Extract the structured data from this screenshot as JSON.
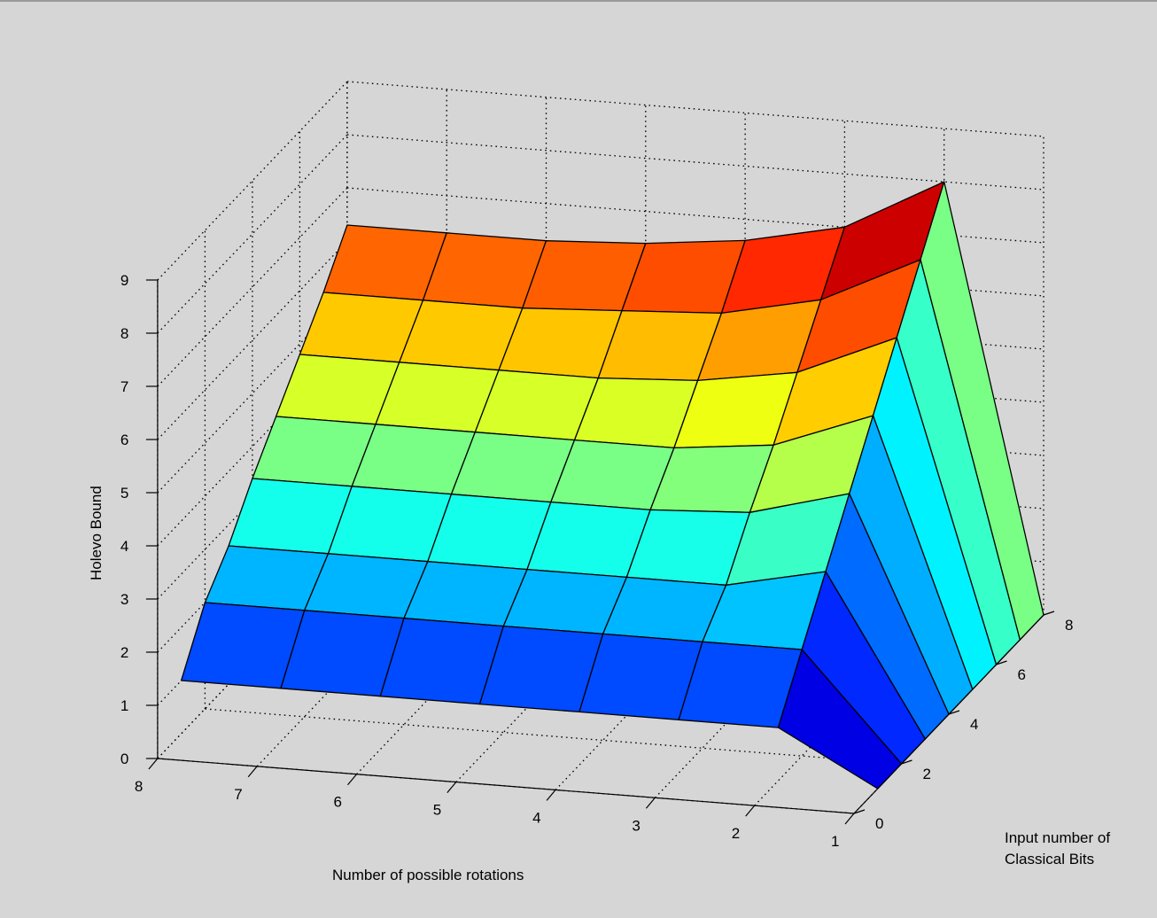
{
  "chart_data": {
    "type": "surface",
    "xlabel": "Number of possible rotations",
    "ylabel": "Input number of Classical Bits",
    "ylabel_lines": [
      "Input number of",
      "Classical Bits"
    ],
    "zlabel": "Holevo Bound",
    "x_ticks": [
      1,
      2,
      3,
      4,
      5,
      6,
      7,
      8
    ],
    "y_ticks": [
      0,
      2,
      4,
      6,
      8
    ],
    "z_ticks": [
      0,
      1,
      2,
      3,
      4,
      5,
      6,
      7,
      8,
      9
    ],
    "xlim": [
      1,
      8
    ],
    "ylim": [
      0,
      8
    ],
    "zlim": [
      0,
      9
    ],
    "grid": true,
    "colormap": "jet",
    "x": [
      1,
      2,
      3,
      4,
      5,
      6,
      7,
      8
    ],
    "y": [
      1,
      2,
      3,
      4,
      5,
      6,
      7,
      8
    ],
    "z": [
      [
        0.0,
        1.0,
        1.0,
        1.0,
        1.0,
        1.0,
        1.0,
        1.0
      ],
      [
        0.0,
        2.0,
        2.0,
        2.0,
        2.0,
        2.0,
        2.0,
        2.0
      ],
      [
        0.0,
        3.0,
        2.6,
        2.6,
        2.6,
        2.6,
        2.6,
        2.6
      ],
      [
        0.0,
        4.0,
        3.5,
        3.4,
        3.4,
        3.4,
        3.4,
        3.4
      ],
      [
        0.0,
        5.0,
        4.3,
        4.1,
        4.1,
        4.1,
        4.1,
        4.1
      ],
      [
        0.0,
        6.0,
        5.2,
        4.9,
        4.8,
        4.8,
        4.8,
        4.8
      ],
      [
        0.0,
        7.0,
        6.1,
        5.7,
        5.6,
        5.5,
        5.5,
        5.5
      ],
      [
        0.0,
        8.0,
        7.0,
        6.6,
        6.4,
        6.3,
        6.3,
        6.3
      ]
    ]
  }
}
